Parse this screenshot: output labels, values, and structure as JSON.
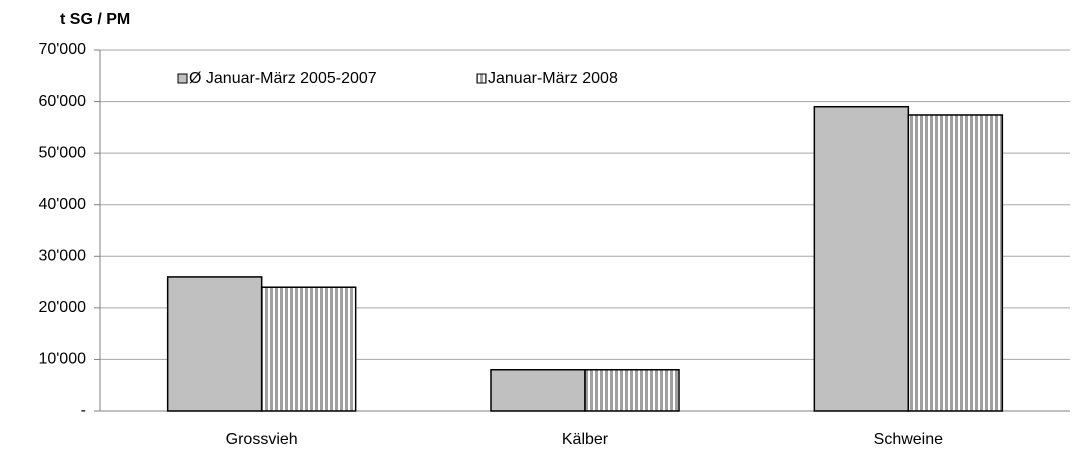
{
  "chart_data": {
    "type": "bar",
    "y_axis_label": "t SG / PM",
    "categories": [
      "Grossvieh",
      "Kälber",
      "Schweine"
    ],
    "series": [
      {
        "name": "Ø Januar-März 2005-2007",
        "color": "#c0c0c0",
        "values": [
          26000,
          8000,
          59000
        ]
      },
      {
        "name": "Januar-März 2008",
        "color": "#a0a0a0",
        "values": [
          24000,
          8000,
          57400
        ]
      }
    ],
    "ylim": [
      0,
      70000
    ],
    "yticks": [
      {
        "value": 0,
        "label": "-"
      },
      {
        "value": 10000,
        "label": "10'000"
      },
      {
        "value": 20000,
        "label": "20'000"
      },
      {
        "value": 30000,
        "label": "30'000"
      },
      {
        "value": 40000,
        "label": "40'000"
      },
      {
        "value": 50000,
        "label": "50'000"
      },
      {
        "value": 60000,
        "label": "60'000"
      },
      {
        "value": 70000,
        "label": "70'000"
      }
    ],
    "grid": true
  }
}
